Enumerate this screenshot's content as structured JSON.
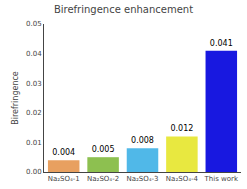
{
  "chart_data": {
    "type": "bar",
    "title": "Birefringence enhancement",
    "categories": [
      "Na₂SO₄-1",
      "Na₂SO₄-2",
      "Na₂SO₄-3",
      "Na₂SO₄-4",
      "This work"
    ],
    "values": [
      0.004,
      0.005,
      0.008,
      0.012,
      0.041
    ],
    "colors": [
      "#E8A060",
      "#8DC050",
      "#50B8E8",
      "#E8E840",
      "#1818E0"
    ],
    "data_labels": true,
    "ylabel": "Birefringence",
    "ylim": [
      0,
      0.05
    ],
    "yticks": [
      {
        "value": 0,
        "label": "0.00"
      },
      0.01,
      0.02,
      0.03,
      0.04,
      0.05
    ],
    "grid": false
  }
}
